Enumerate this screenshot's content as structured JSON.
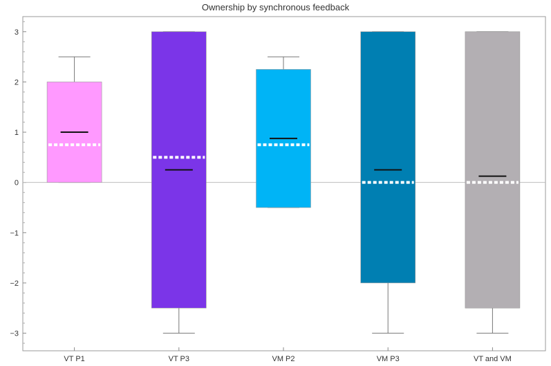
{
  "chart_data": {
    "type": "box",
    "title": "Ownership by synchronous feedback",
    "xlabel": "",
    "ylabel": "",
    "ylim": [
      -3.35,
      3.3
    ],
    "yticks": [
      3,
      2,
      1,
      0,
      -1,
      -2,
      -3
    ],
    "ytick_labels": [
      "3",
      "2",
      "1",
      "0",
      "−1",
      "−2",
      "−3"
    ],
    "categories": [
      "VT P1",
      "VT P3",
      "VM P2",
      "VM P3",
      "VT and VM"
    ],
    "boxes": [
      {
        "label": "VT P1",
        "color": "#ff99ff",
        "whisker_low": 0,
        "q1": 0,
        "q3": 2,
        "whisker_high": 2.5,
        "median": 1.0,
        "mean": 0.75
      },
      {
        "label": "VT P3",
        "color": "#7b35e8",
        "whisker_low": -3,
        "q1": -2.5,
        "q3": 3,
        "whisker_high": 3,
        "median": 0.25,
        "mean": 0.5
      },
      {
        "label": "VM P2",
        "color": "#00b4f6",
        "whisker_low": -0.5,
        "q1": -0.5,
        "q3": 2.25,
        "whisker_high": 2.5,
        "median": 0.875,
        "mean": 0.75
      },
      {
        "label": "VM P3",
        "color": "#007fb2",
        "whisker_low": -3,
        "q1": -2,
        "q3": 3,
        "whisker_high": 3,
        "median": 0.25,
        "mean": 0
      },
      {
        "label": "VT and VM",
        "color": "#b3afb3",
        "whisker_low": -3,
        "q1": -2.5,
        "q3": 3,
        "whisker_high": 3,
        "median": 0.125,
        "mean": 0
      }
    ],
    "zero_line": true,
    "grid": false
  }
}
